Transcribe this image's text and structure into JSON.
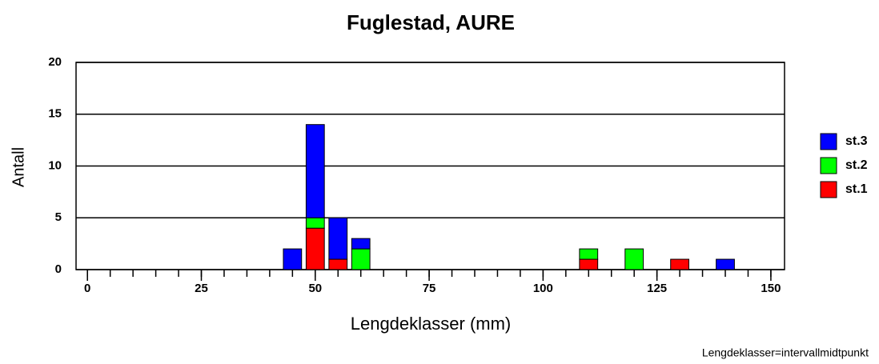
{
  "chart_data": {
    "type": "bar",
    "stacked": true,
    "title": "Fuglestad, AURE",
    "x_label": "Lengdeklasser (mm)",
    "y_label": "Antall",
    "note": "Lengdeklasser=intervallmidtpunkt",
    "x": [
      45,
      50,
      55,
      60,
      110,
      120,
      130,
      140
    ],
    "series": [
      {
        "name": "st.1",
        "color": "#ff0000",
        "values": [
          0,
          4,
          1,
          0,
          1,
          0,
          1,
          0
        ]
      },
      {
        "name": "st.2",
        "color": "#00ff00",
        "values": [
          0,
          1,
          0,
          2,
          1,
          2,
          0,
          0
        ]
      },
      {
        "name": "st.3",
        "color": "#0000ff",
        "values": [
          2,
          9,
          4,
          1,
          0,
          0,
          0,
          1
        ]
      }
    ],
    "xlim": [
      -2.5,
      153
    ],
    "xticks": [
      0,
      25,
      50,
      75,
      100,
      125,
      150
    ],
    "xminorticks": [
      0,
      5,
      10,
      15,
      20,
      25,
      30,
      35,
      40,
      45,
      50,
      55,
      60,
      65,
      70,
      75,
      80,
      85,
      90,
      95,
      100,
      105,
      110,
      115,
      120,
      125,
      130,
      135,
      140,
      145,
      150
    ],
    "bar_width": 4,
    "ylim": [
      0,
      20
    ],
    "yticks": [
      0,
      5,
      10,
      15,
      20
    ],
    "grid": true,
    "legend": "right"
  }
}
